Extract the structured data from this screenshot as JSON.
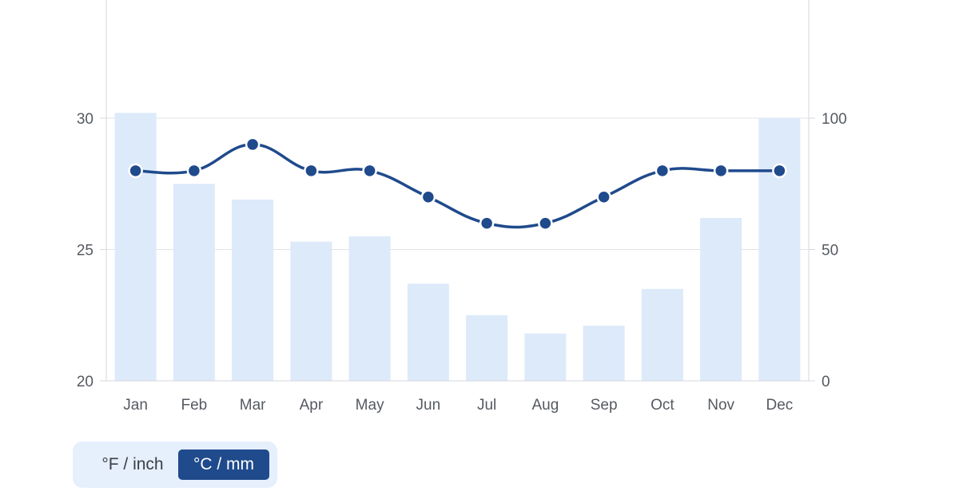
{
  "chart_data": {
    "type": "bar",
    "categories": [
      "Jan",
      "Feb",
      "Mar",
      "Apr",
      "May",
      "Jun",
      "Jul",
      "Aug",
      "Sep",
      "Oct",
      "Nov",
      "Dec"
    ],
    "series": [
      {
        "type": "bar",
        "axis": "right",
        "values": [
          102,
          75,
          69,
          53,
          55,
          37,
          25,
          18,
          21,
          35,
          62,
          100
        ]
      },
      {
        "type": "line",
        "axis": "left",
        "values": [
          28,
          28,
          29,
          28,
          28,
          27,
          26,
          26,
          27,
          28,
          28,
          28
        ]
      }
    ],
    "y_left": {
      "lim": [
        20,
        34.5
      ],
      "ticks": [
        "20",
        "25",
        "30"
      ]
    },
    "y_right": {
      "lim": [
        0,
        145
      ],
      "ticks": [
        "0",
        "50",
        "100"
      ]
    },
    "grid": true,
    "colors": {
      "bar": "#dceafa",
      "line": "#1f4a8c",
      "grid": "#e0e3e8",
      "axis": "#d4d7dc"
    }
  },
  "unit_toggle": {
    "option_imperial": "°F / inch",
    "option_metric": "°C / mm",
    "selected": "°C / mm"
  }
}
